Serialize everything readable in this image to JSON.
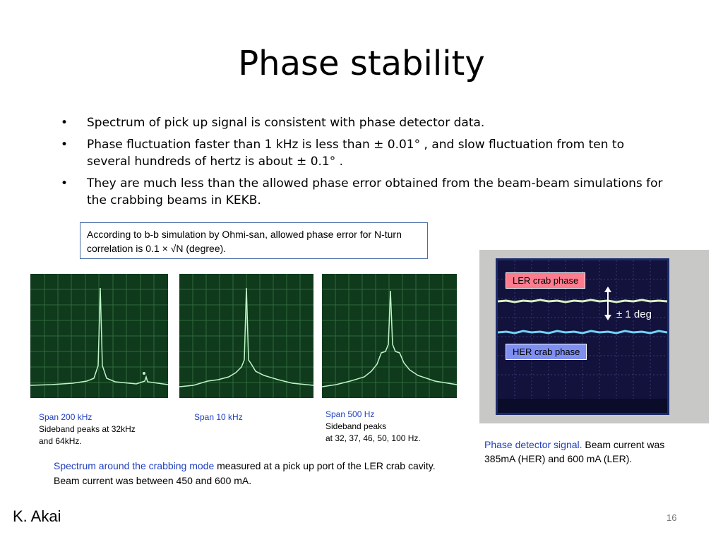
{
  "title": "Phase stability",
  "bullet_symbol": "•",
  "bullets": [
    "Spectrum of pick up signal is consistent with phase detector data.",
    "Phase fluctuation faster than 1 kHz is less than ± 0.01° , and slow fluctuation from ten to several hundreds of hertz is about ± 0.1° .",
    "They are much less than the allowed phase error obtained from the beam-beam simulations for the crabbing beams in KEKB."
  ],
  "note_box": "According to b-b simulation by Ohmi-san, allowed phase error for N-turn correlation is 0.1 × √N (degree).",
  "spectra": [
    {
      "cap1": "Span 200 kHz",
      "cap2": "Sideband peaks at 32kHz",
      "cap3": "and 64kHz."
    },
    {
      "cap1": "Span 10 kHz"
    },
    {
      "cap1": "Span 500 Hz",
      "cap2": "Sideband peaks",
      "cap3": "at 32, 37, 46, 50, 100 Hz."
    }
  ],
  "scope": {
    "ler_label": "LER crab phase",
    "her_label": "HER crab phase",
    "deg_label": "± 1 deg",
    "colors": {
      "ler": "#ff7b8e",
      "her": "#7f8ff0",
      "ler_trace": "#d9efc0",
      "her_trace": "#6fd3f7",
      "screen": "#12123c"
    }
  },
  "phase_caption": {
    "blue": "Phase detector signal.",
    "black": " Beam current was 385mA (HER) and 600 mA (LER)."
  },
  "bottom_caption": {
    "blue": "Spectrum around the crabbing mode",
    "black": " measured at a pick up port of the LER crab cavity. Beam current was between 450 and 600 mA."
  },
  "author": "K. Akai",
  "page_number": "16"
}
